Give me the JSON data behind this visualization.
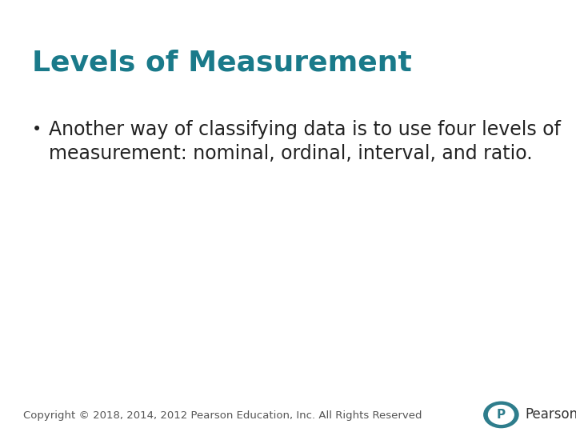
{
  "title": "Levels of Measurement",
  "title_color": "#1A7A8A",
  "title_fontsize": 26,
  "title_bold": false,
  "bullet_text_line1": "Another way of classifying data is to use four levels of",
  "bullet_text_line2": "measurement: nominal, ordinal, interval, and ratio.",
  "bullet_color": "#222222",
  "bullet_fontsize": 17,
  "bullet_symbol": "•",
  "footer_text": "Copyright © 2018, 2014, 2012 Pearson Education, Inc. All Rights Reserved",
  "footer_color": "#555555",
  "footer_fontsize": 9.5,
  "background_color": "#ffffff",
  "pearson_text": "Pearson",
  "pearson_logo_color": "#2E7D8C",
  "pearson_text_color": "#333333"
}
